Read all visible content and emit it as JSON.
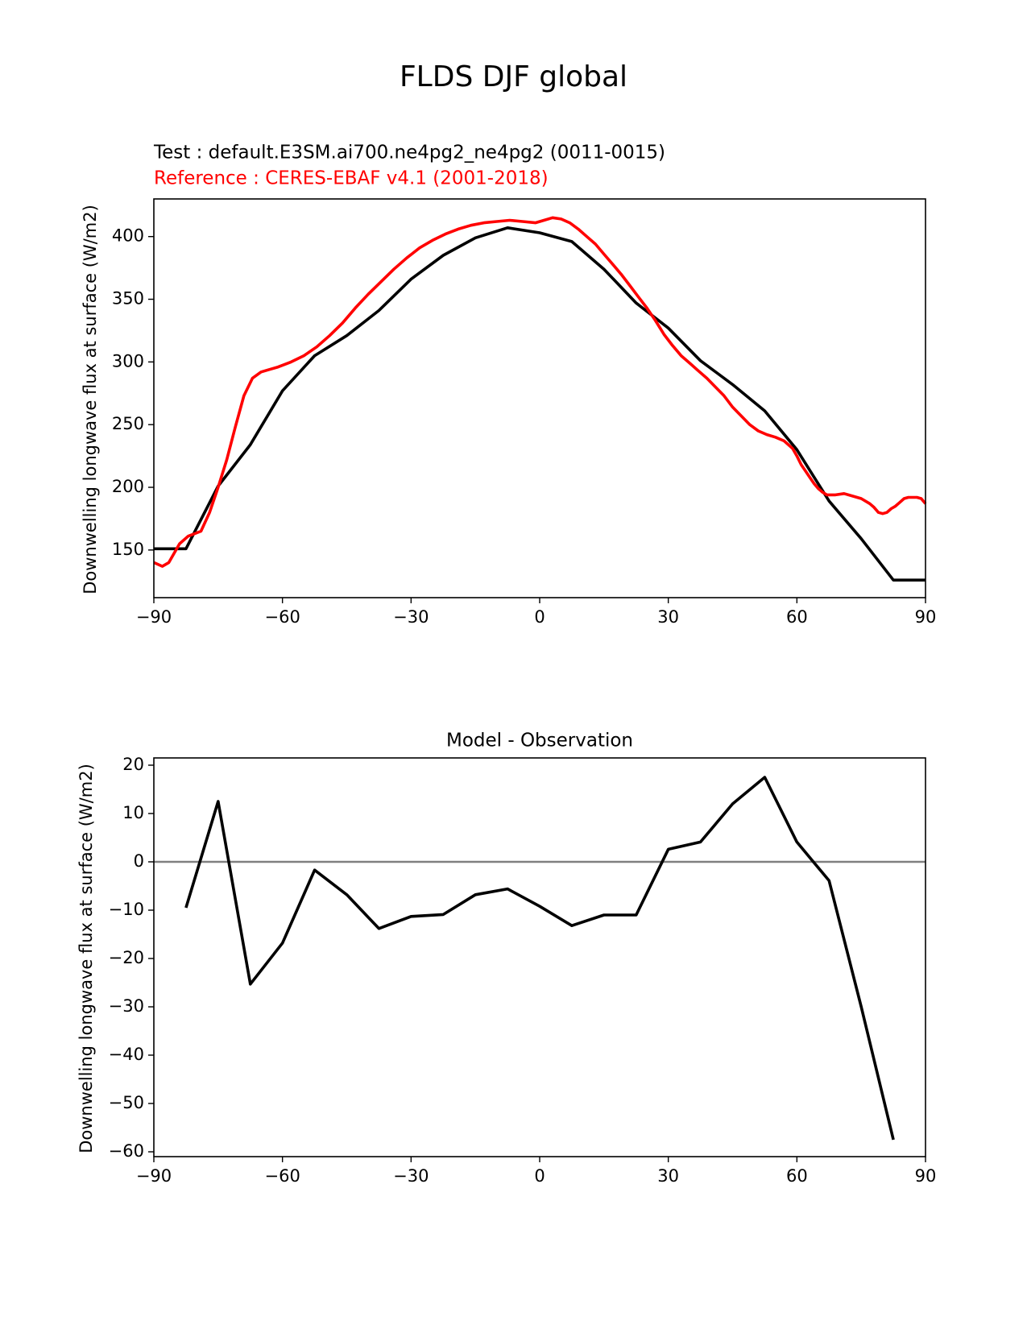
{
  "figure_title": "FLDS DJF global",
  "chart_data": [
    {
      "type": "line",
      "test_label": "Test : default.E3SM.ai700.ne4pg2_ne4pg2 (0011-0015)",
      "reference_label": "Reference : CERES-EBAF v4.1 (2001-2018)",
      "xlabel": "",
      "ylabel": "Downwelling longwave flux at surface (W/m2)",
      "xlim": [
        -90,
        90
      ],
      "ylim": [
        112,
        430
      ],
      "xticks": [
        -90,
        -60,
        -30,
        0,
        30,
        60,
        90
      ],
      "xtick_labels": [
        "−90",
        "−60",
        "−30",
        "0",
        "30",
        "60",
        "90"
      ],
      "yticks": [
        150,
        200,
        250,
        300,
        350,
        400
      ],
      "ytick_labels": [
        "150",
        "200",
        "250",
        "300",
        "350",
        "400"
      ],
      "grid": false,
      "colors": {
        "test": "#000000",
        "reference": "#ff0000"
      },
      "series": [
        {
          "role": "test",
          "x": [
            -90,
            -82.5,
            -75,
            -67.5,
            -60,
            -52.5,
            -45,
            -37.5,
            -30,
            -22.5,
            -15,
            -7.5,
            0,
            7.5,
            15,
            22.5,
            30,
            37.5,
            45,
            52.5,
            60,
            67.5,
            75,
            82.5,
            90
          ],
          "y": [
            151,
            151,
            201,
            234,
            277,
            305,
            321,
            341,
            366,
            385,
            399,
            407,
            403,
            396,
            374,
            347,
            327,
            301,
            282,
            261,
            230,
            189,
            159,
            126,
            126
          ]
        },
        {
          "role": "reference",
          "x": [
            -90,
            -88,
            -86.5,
            -84,
            -82,
            -79,
            -77,
            -75,
            -73,
            -71,
            -69,
            -67,
            -65,
            -63,
            -61,
            -58,
            -55,
            -52,
            -49,
            -46,
            -43,
            -40,
            -37,
            -34,
            -31,
            -28,
            -25,
            -22,
            -19,
            -16,
            -13,
            -10,
            -7,
            -4,
            -1,
            1,
            3,
            5,
            7,
            9,
            11,
            13,
            15,
            17,
            19,
            21,
            23,
            25,
            27,
            29,
            31,
            33,
            35,
            37,
            39,
            41,
            43,
            45,
            47,
            49,
            51,
            53,
            55,
            57,
            59,
            60,
            61,
            62,
            63,
            64,
            65,
            66,
            67,
            69,
            71,
            73,
            75,
            77,
            78,
            79,
            80,
            81,
            82,
            83,
            84,
            85,
            86,
            87,
            88,
            89,
            90
          ],
          "y": [
            140,
            137,
            140,
            155,
            161,
            165,
            180,
            200,
            222,
            248,
            273,
            287,
            292,
            294,
            296,
            300,
            305,
            312,
            321,
            331,
            343,
            354,
            364,
            374,
            383,
            391,
            397,
            402,
            406,
            409,
            411,
            412,
            413,
            412,
            411,
            413,
            415,
            414,
            411,
            406,
            400,
            394,
            386,
            378,
            370,
            361,
            352,
            343,
            333,
            322,
            313,
            305,
            299,
            293,
            287,
            280,
            273,
            264,
            257,
            250,
            245,
            242,
            240,
            237,
            231,
            225,
            218,
            213,
            208,
            203,
            199,
            196,
            194,
            194,
            195,
            193,
            191,
            187,
            184,
            180,
            179,
            180,
            183,
            185,
            188,
            191,
            192,
            192,
            192,
            191,
            187
          ]
        }
      ]
    },
    {
      "type": "line",
      "title": "Model - Observation",
      "xlabel": "",
      "ylabel": "Downwelling longwave flux at surface (W/m2)",
      "xlim": [
        -90,
        90
      ],
      "ylim": [
        -61,
        21.5
      ],
      "xticks": [
        -90,
        -60,
        -30,
        0,
        30,
        60,
        90
      ],
      "xtick_labels": [
        "−90",
        "−60",
        "−30",
        "0",
        "30",
        "60",
        "90"
      ],
      "yticks": [
        20,
        10,
        0,
        -10,
        -20,
        -30,
        -40,
        -50,
        -60
      ],
      "ytick_labels": [
        "20",
        "10",
        "0",
        "−10",
        "−20",
        "−30",
        "−40",
        "−50",
        "−60"
      ],
      "grid": false,
      "zero_line_color": "#808080",
      "colors": {
        "difference": "#000000"
      },
      "series": [
        {
          "role": "difference",
          "x": [
            -82.5,
            -75,
            -67.5,
            -60,
            -52.5,
            -45,
            -37.5,
            -30,
            -22.5,
            -15,
            -7.5,
            0,
            7.5,
            15,
            22.5,
            30,
            37.5,
            45,
            52.5,
            60,
            67.5,
            75,
            82.5
          ],
          "y": [
            -9.5,
            12.5,
            -25.3,
            -16.8,
            -1.7,
            -6.8,
            -13.8,
            -11.3,
            -10.9,
            -6.8,
            -5.6,
            -9.2,
            -13.2,
            -11.0,
            -11.0,
            2.6,
            4.1,
            12.0,
            17.5,
            4.1,
            -3.9,
            -30.0,
            -57.5
          ]
        }
      ]
    }
  ]
}
